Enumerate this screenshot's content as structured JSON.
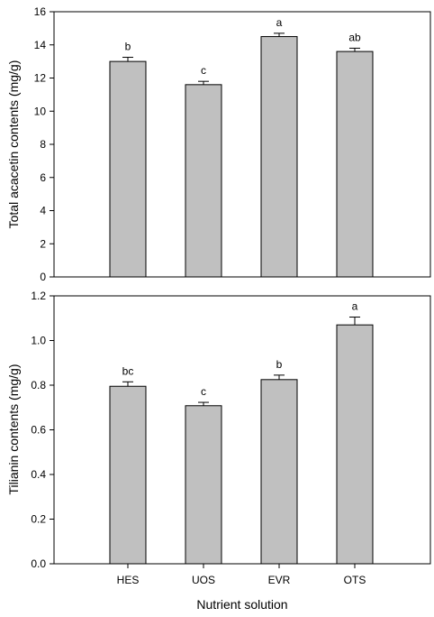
{
  "chart_data": [
    {
      "type": "bar",
      "categories": [
        "HES",
        "UOS",
        "EVR",
        "OTS"
      ],
      "values": [
        13.0,
        11.6,
        14.5,
        13.6
      ],
      "errors": [
        0.25,
        0.2,
        0.2,
        0.2
      ],
      "annotations": [
        "b",
        "c",
        "a",
        "ab"
      ],
      "ylabel": "Total acacetin contents (mg/g)",
      "ylim": [
        0,
        16
      ],
      "yticks": [
        "0",
        "2",
        "4",
        "6",
        "8",
        "10",
        "12",
        "14",
        "16"
      ],
      "bar_color": "#c0c0c0",
      "show_xticklabels": false
    },
    {
      "type": "bar",
      "categories": [
        "HES",
        "UOS",
        "EVR",
        "OTS"
      ],
      "values": [
        0.795,
        0.708,
        0.825,
        1.07
      ],
      "errors": [
        0.02,
        0.015,
        0.02,
        0.035
      ],
      "annotations": [
        "bc",
        "c",
        "b",
        "a"
      ],
      "ylabel": "Tilianin contents (mg/g)",
      "xlabel": "Nutrient solution",
      "ylim": [
        0,
        1.2
      ],
      "yticks": [
        "0.0",
        "0.2",
        "0.4",
        "0.6",
        "0.8",
        "1.0",
        "1.2"
      ],
      "bar_color": "#c0c0c0",
      "show_xticklabels": true
    }
  ]
}
